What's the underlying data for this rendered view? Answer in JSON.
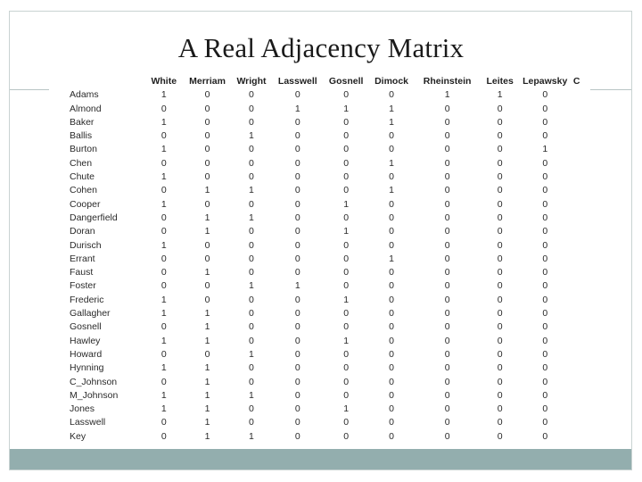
{
  "slide": {
    "title": "A Real Adjacency Matrix"
  },
  "matrix": {
    "columns": [
      "White",
      "Merriam",
      "Wright",
      "Lasswell",
      "Gosnell",
      "Dimock",
      "Rheinstein",
      "Leites",
      "Lepawsky",
      "C"
    ],
    "rows": [
      {
        "name": "Adams",
        "values": [
          1,
          0,
          0,
          0,
          0,
          0,
          1,
          1,
          0,
          ""
        ]
      },
      {
        "name": "Almond",
        "values": [
          0,
          0,
          0,
          1,
          1,
          1,
          0,
          0,
          0,
          ""
        ]
      },
      {
        "name": "Baker",
        "values": [
          1,
          0,
          0,
          0,
          0,
          1,
          0,
          0,
          0,
          ""
        ]
      },
      {
        "name": "Ballis",
        "values": [
          0,
          0,
          1,
          0,
          0,
          0,
          0,
          0,
          0,
          ""
        ]
      },
      {
        "name": "Burton",
        "values": [
          1,
          0,
          0,
          0,
          0,
          0,
          0,
          0,
          1,
          ""
        ]
      },
      {
        "name": "Chen",
        "values": [
          0,
          0,
          0,
          0,
          0,
          1,
          0,
          0,
          0,
          ""
        ]
      },
      {
        "name": "Chute",
        "values": [
          1,
          0,
          0,
          0,
          0,
          0,
          0,
          0,
          0,
          ""
        ]
      },
      {
        "name": "Cohen",
        "values": [
          0,
          1,
          1,
          0,
          0,
          1,
          0,
          0,
          0,
          ""
        ]
      },
      {
        "name": "Cooper",
        "values": [
          1,
          0,
          0,
          0,
          1,
          0,
          0,
          0,
          0,
          ""
        ]
      },
      {
        "name": "Dangerfield",
        "values": [
          0,
          1,
          1,
          0,
          0,
          0,
          0,
          0,
          0,
          ""
        ]
      },
      {
        "name": "Doran",
        "values": [
          0,
          1,
          0,
          0,
          1,
          0,
          0,
          0,
          0,
          ""
        ]
      },
      {
        "name": "Durisch",
        "values": [
          1,
          0,
          0,
          0,
          0,
          0,
          0,
          0,
          0,
          ""
        ]
      },
      {
        "name": "Errant",
        "values": [
          0,
          0,
          0,
          0,
          0,
          1,
          0,
          0,
          0,
          ""
        ]
      },
      {
        "name": "Faust",
        "values": [
          0,
          1,
          0,
          0,
          0,
          0,
          0,
          0,
          0,
          ""
        ]
      },
      {
        "name": "Foster",
        "values": [
          0,
          0,
          1,
          1,
          0,
          0,
          0,
          0,
          0,
          ""
        ]
      },
      {
        "name": "Frederic",
        "values": [
          1,
          0,
          0,
          0,
          1,
          0,
          0,
          0,
          0,
          ""
        ]
      },
      {
        "name": "Gallagher",
        "values": [
          1,
          1,
          0,
          0,
          0,
          0,
          0,
          0,
          0,
          ""
        ]
      },
      {
        "name": "Gosnell",
        "values": [
          0,
          1,
          0,
          0,
          0,
          0,
          0,
          0,
          0,
          ""
        ]
      },
      {
        "name": "Hawley",
        "values": [
          1,
          1,
          0,
          0,
          1,
          0,
          0,
          0,
          0,
          ""
        ]
      },
      {
        "name": "Howard",
        "values": [
          0,
          0,
          1,
          0,
          0,
          0,
          0,
          0,
          0,
          ""
        ]
      },
      {
        "name": "Hynning",
        "values": [
          1,
          1,
          0,
          0,
          0,
          0,
          0,
          0,
          0,
          ""
        ]
      },
      {
        "name": "C_Johnson",
        "values": [
          0,
          1,
          0,
          0,
          0,
          0,
          0,
          0,
          0,
          ""
        ]
      },
      {
        "name": "M_Johnson",
        "values": [
          1,
          1,
          1,
          0,
          0,
          0,
          0,
          0,
          0,
          ""
        ]
      },
      {
        "name": "Jones",
        "values": [
          1,
          1,
          0,
          0,
          1,
          0,
          0,
          0,
          0,
          ""
        ]
      },
      {
        "name": "Lasswell",
        "values": [
          0,
          1,
          0,
          0,
          0,
          0,
          0,
          0,
          0,
          ""
        ]
      },
      {
        "name": "Key",
        "values": [
          0,
          1,
          1,
          0,
          0,
          0,
          0,
          0,
          0,
          ""
        ]
      }
    ]
  }
}
